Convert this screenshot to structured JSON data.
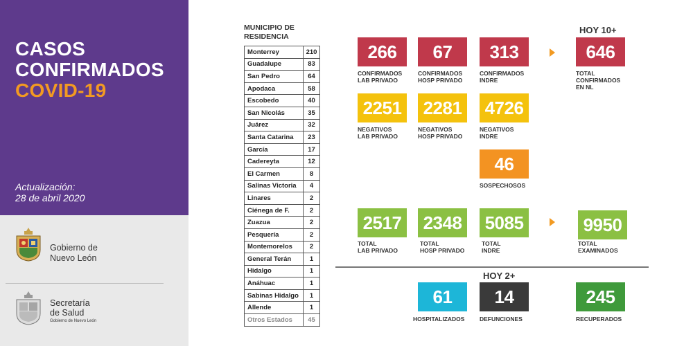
{
  "sidebar": {
    "title_line1": "CASOS",
    "title_line2": "CONFIRMADOS",
    "title_line3": "COVID-19",
    "update_label": "Actualización:",
    "update_date": "28 de abril 2020",
    "gob_line1": "Gobierno de",
    "gob_line2": "Nuevo León",
    "salud_line1": "Secretaría",
    "salud_line2": "de Salud",
    "salud_line3": "Gobierno de Nuevo León"
  },
  "table": {
    "header_line1": "MUNICIPIO DE",
    "header_line2": "RESIDENCIA",
    "rows": [
      {
        "name": "Monterrey",
        "value": "210"
      },
      {
        "name": "Guadalupe",
        "value": "83"
      },
      {
        "name": "San Pedro",
        "value": "64"
      },
      {
        "name": "Apodaca",
        "value": "58"
      },
      {
        "name": "Escobedo",
        "value": "40"
      },
      {
        "name": "San Nicolás",
        "value": "35"
      },
      {
        "name": "Juárez",
        "value": "32"
      },
      {
        "name": "Santa Catarina",
        "value": "23"
      },
      {
        "name": "García",
        "value": "17"
      },
      {
        "name": "Cadereyta",
        "value": "12"
      },
      {
        "name": "El Carmen",
        "value": "8"
      },
      {
        "name": "Salinas Victoria",
        "value": "4"
      },
      {
        "name": "Linares",
        "value": "2"
      },
      {
        "name": "Ciénega de F.",
        "value": "2"
      },
      {
        "name": "Zuazua",
        "value": "2"
      },
      {
        "name": "Pesquería",
        "value": "2"
      },
      {
        "name": "Montemorelos",
        "value": "2"
      },
      {
        "name": "General Terán",
        "value": "1"
      },
      {
        "name": "Hidalgo",
        "value": "1"
      },
      {
        "name": "Anáhuac",
        "value": "1"
      },
      {
        "name": "Sabinas Hidalgo",
        "value": "1"
      },
      {
        "name": "Allende",
        "value": "1"
      },
      {
        "name": "Otros Estados",
        "value": "45"
      }
    ]
  },
  "stats": {
    "hoy_confirmed": "HOY 10+",
    "hoy_deaths": "HOY 2+",
    "confirmados_lab": {
      "value": "266",
      "line1": "CONFIRMADOS",
      "line2": "LAB PRIVADO"
    },
    "confirmados_hosp": {
      "value": "67",
      "line1": "CONFIRMADOS",
      "line2": "HOSP PRIVADO"
    },
    "confirmados_indre": {
      "value": "313",
      "line1": "CONFIRMADOS",
      "line2": "INDRE"
    },
    "total_confirmados": {
      "value": "646",
      "line1": "TOTAL",
      "line2": "CONFIRMADOS",
      "line3": "EN NL"
    },
    "negativos_lab": {
      "value": "2251",
      "line1": "NEGATIVOS",
      "line2": "LAB PRIVADO"
    },
    "negativos_hosp": {
      "value": "2281",
      "line1": "NEGATIVOS",
      "line2": "HOSP PRIVADO"
    },
    "negativos_indre": {
      "value": "4726",
      "line1": "NEGATIVOS",
      "line2": "INDRE"
    },
    "sospechosos": {
      "value": "46",
      "line1": "SOSPECHOSOS"
    },
    "total_lab": {
      "value": "2517",
      "line1": "TOTAL",
      "line2": "LAB PRIVADO"
    },
    "total_hosp": {
      "value": "2348",
      "line1": "TOTAL",
      "line2": "HOSP PRIVADO"
    },
    "total_indre": {
      "value": "5085",
      "line1": "TOTAL",
      "line2": "INDRE"
    },
    "total_examinados": {
      "value": "9950",
      "line1": "TOTAL",
      "line2": "EXAMINADOS"
    },
    "hospitalizados": {
      "value": "61",
      "line1": "HOSPITALIZADOS"
    },
    "defunciones": {
      "value": "14",
      "line1": "DEFUNCIONES"
    },
    "recuperados": {
      "value": "245",
      "line1": "RECUPERADOS"
    }
  },
  "colors": {
    "purple": "#5e3a8c",
    "orange_title": "#f29a22",
    "red": "#c0394b",
    "yellow": "#f4c20d",
    "orange": "#f39322",
    "light_green": "#8bc043",
    "cyan": "#1db6d8",
    "dark": "#3a3a3a",
    "dark_green": "#3f9a3b"
  },
  "icons": [
    "nuevo-leon-seal-icon",
    "secretaria-salud-seal-icon",
    "arrow-right-icon"
  ]
}
